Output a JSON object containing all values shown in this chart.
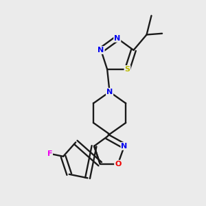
{
  "background_color": "#ebebeb",
  "bond_color": "#1a1a1a",
  "atom_colors": {
    "N": "#0000ee",
    "O": "#ee0000",
    "S": "#bbbb00",
    "F": "#ee00ee",
    "C": "#1a1a1a"
  },
  "figsize": [
    3.0,
    3.0
  ],
  "dpi": 100
}
